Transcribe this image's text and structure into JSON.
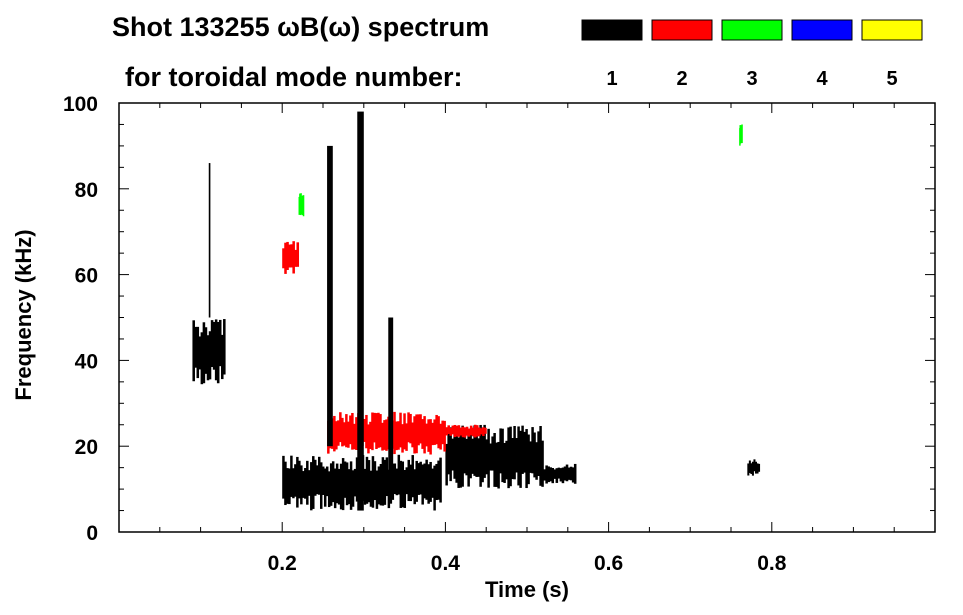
{
  "chart_data": {
    "type": "heatmap",
    "title_line1": "Shot 133255 ωB(ω) spectrum",
    "title_line2": "for toroidal mode number:",
    "xlabel": "Time (s)",
    "ylabel": "Frequency (kHz)",
    "xlim": [
      0,
      1.0
    ],
    "ylim": [
      0,
      100
    ],
    "xticks": [
      0.2,
      0.4,
      0.6,
      0.8
    ],
    "yticks": [
      0,
      20,
      40,
      60,
      80,
      100
    ],
    "grid": false,
    "legend_placement": "top-right",
    "modes": [
      {
        "n": "1",
        "color": "#000000"
      },
      {
        "n": "2",
        "color": "#ff0000"
      },
      {
        "n": "3",
        "color": "#00ff00"
      },
      {
        "n": "4",
        "color": "#0000ff"
      },
      {
        "n": "5",
        "color": "#ffff00"
      }
    ],
    "regions": [
      {
        "mode": "1",
        "t": [
          0.09,
          0.13
        ],
        "f": [
          34,
          50
        ]
      },
      {
        "mode": "1",
        "t": [
          0.2,
          0.395
        ],
        "f": [
          5,
          18
        ]
      },
      {
        "mode": "1",
        "t": [
          0.4,
          0.52
        ],
        "f": [
          10,
          25
        ]
      },
      {
        "mode": "1",
        "t": [
          0.52,
          0.56
        ],
        "f": [
          11,
          16
        ]
      },
      {
        "mode": "1",
        "t": [
          0.77,
          0.785
        ],
        "f": [
          13,
          17
        ]
      },
      {
        "mode": "2",
        "t": [
          0.2,
          0.22
        ],
        "f": [
          60,
          68
        ]
      },
      {
        "mode": "2",
        "t": [
          0.255,
          0.4
        ],
        "f": [
          18,
          28
        ]
      },
      {
        "mode": "2",
        "t": [
          0.4,
          0.45
        ],
        "f": [
          22,
          25
        ]
      },
      {
        "mode": "3",
        "t": [
          0.76,
          0.763
        ],
        "f": [
          90,
          95
        ]
      },
      {
        "mode": "3",
        "t": [
          0.22,
          0.226
        ],
        "f": [
          73,
          79
        ]
      }
    ],
    "bursts": [
      {
        "mode": "1",
        "t": [
          0.11,
          0.112
        ],
        "f": [
          50,
          86
        ]
      },
      {
        "mode": "1",
        "t": [
          0.255,
          0.262
        ],
        "f": [
          20,
          90
        ]
      },
      {
        "mode": "1",
        "t": [
          0.292,
          0.3
        ],
        "f": [
          5,
          98
        ]
      },
      {
        "mode": "1",
        "t": [
          0.33,
          0.336
        ],
        "f": [
          10,
          50
        ]
      }
    ]
  }
}
